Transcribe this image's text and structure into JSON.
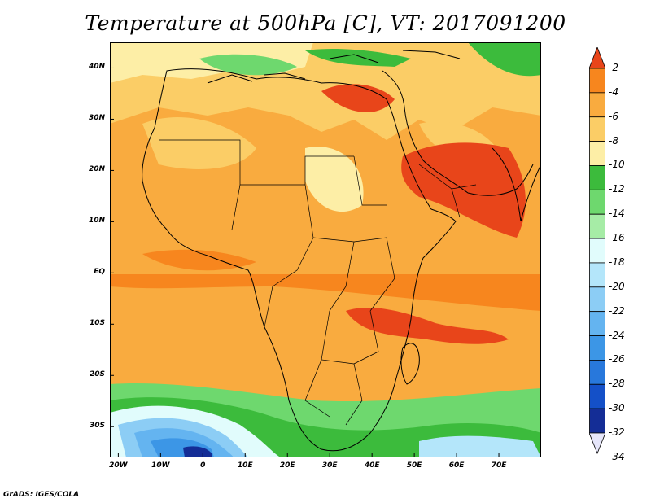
{
  "title": "Temperature at 500hPa [C], VT: 2017091200",
  "footer": "GrADS: IGES/COLA",
  "axes": {
    "y_ticks": [
      {
        "label": "40N",
        "value": 40
      },
      {
        "label": "30N",
        "value": 30
      },
      {
        "label": "20N",
        "value": 20
      },
      {
        "label": "10N",
        "value": 10
      },
      {
        "label": "EQ",
        "value": 0
      },
      {
        "label": "10S",
        "value": -10
      },
      {
        "label": "20S",
        "value": -20
      },
      {
        "label": "30S",
        "value": -30
      }
    ],
    "x_ticks": [
      {
        "label": "20W",
        "value": -20
      },
      {
        "label": "10W",
        "value": -10
      },
      {
        "label": "0",
        "value": 0
      },
      {
        "label": "10E",
        "value": 10
      },
      {
        "label": "20E",
        "value": 20
      },
      {
        "label": "30E",
        "value": 30
      },
      {
        "label": "40E",
        "value": 40
      },
      {
        "label": "50E",
        "value": 50
      },
      {
        "label": "60E",
        "value": 60
      },
      {
        "label": "70E",
        "value": 70
      }
    ],
    "lon_range": [
      -22,
      80
    ],
    "lat_range": [
      -36,
      45
    ]
  },
  "colorbar": {
    "labels": [
      "-2",
      "-4",
      "-6",
      "-8",
      "-10",
      "-12",
      "-14",
      "-16",
      "-18",
      "-20",
      "-22",
      "-24",
      "-26",
      "-28",
      "-30",
      "-32",
      "-34"
    ],
    "colors": [
      "#e8451a",
      "#f7861e",
      "#f9ab3f",
      "#fbcd66",
      "#fdeea6",
      "#3cbb3c",
      "#6ed86e",
      "#a6eca6",
      "#e1fcfc",
      "#b4e6fa",
      "#8ccdf5",
      "#64b4f0",
      "#3c96e6",
      "#2878dc",
      "#1450c8",
      "#142d96",
      "#e6e6fa"
    ],
    "top_arrow_color": "#e8451a",
    "bottom_arrow_color": "#e6e6fa"
  }
}
